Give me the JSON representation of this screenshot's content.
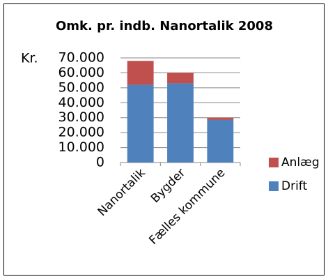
{
  "chart_data": {
    "type": "stacked_bar",
    "title": "Omk. pr. indb. Nanortalik 2008",
    "ylabel": "Kr.",
    "categories": [
      "Nanortalik",
      "Bygder",
      "Fælles kommune"
    ],
    "series": [
      {
        "name": "Drift",
        "color": "#4f81bd",
        "values": [
          52000,
          53000,
          28500
        ]
      },
      {
        "name": "Anlæg",
        "color": "#c0504d",
        "values": [
          16000,
          7000,
          1500
        ]
      }
    ],
    "ylim": [
      0,
      70000
    ],
    "yticks": [
      0,
      {
        "value": 10000,
        "label": "10.000"
      },
      {
        "value": 20000,
        "label": "20.000"
      },
      {
        "value": 30000,
        "label": "30.000"
      },
      {
        "value": 40000,
        "label": "40.000"
      },
      {
        "value": 50000,
        "label": "50.000"
      },
      {
        "value": 60000,
        "label": "60.000"
      },
      {
        "value": 70000,
        "label": "70.000"
      }
    ],
    "grid": true,
    "legend": "right"
  }
}
